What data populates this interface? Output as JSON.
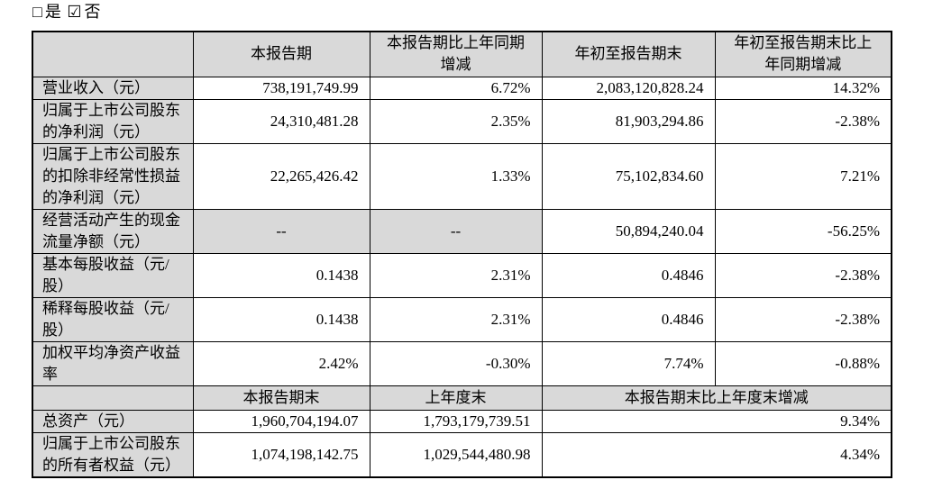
{
  "checkline": {
    "unchecked_icon": "□",
    "checked_icon": "☑",
    "yes_label": "是",
    "no_label": "否"
  },
  "colors": {
    "page_bg": "#ffffff",
    "shaded_cell_bg": "#d9d9d9",
    "border": "#000000",
    "text": "#000000"
  },
  "table": {
    "section1": {
      "headers": [
        "",
        "本报告期",
        "本报告期比上年同期增减",
        "年初至报告期末",
        "年初至报告期末比上年同期增减"
      ],
      "rows": [
        {
          "label": "营业收入（元）",
          "values": [
            "738,191,749.99",
            "6.72%",
            "2,083,120,828.24",
            "14.32%"
          ]
        },
        {
          "label": "归属于上市公司股东的净利润（元）",
          "values": [
            "24,310,481.28",
            "2.35%",
            "81,903,294.86",
            "-2.38%"
          ]
        },
        {
          "label": "归属于上市公司股东的扣除非经常性损益的净利润（元）",
          "values": [
            "22,265,426.42",
            "1.33%",
            "75,102,834.60",
            "7.21%"
          ]
        },
        {
          "label": "经营活动产生的现金流量净额（元）",
          "values": [
            "--",
            "--",
            "50,894,240.04",
            "-56.25%"
          ]
        },
        {
          "label": "基本每股收益（元/股）",
          "values": [
            "0.1438",
            "2.31%",
            "0.4846",
            "-2.38%"
          ]
        },
        {
          "label": "稀释每股收益（元/股）",
          "values": [
            "0.1438",
            "2.31%",
            "0.4846",
            "-2.38%"
          ]
        },
        {
          "label": "加权平均净资产收益率",
          "values": [
            "2.42%",
            "-0.30%",
            "7.74%",
            "-0.88%"
          ]
        }
      ]
    },
    "section2": {
      "headers": [
        "",
        "本报告期末",
        "上年度末",
        "本报告期末比上年度末增减"
      ],
      "rows": [
        {
          "label": "总资产（元）",
          "values": [
            "1,960,704,194.07",
            "1,793,179,739.51",
            "9.34%"
          ]
        },
        {
          "label": "归属于上市公司股东的所有者权益（元）",
          "values": [
            "1,074,198,142.75",
            "1,029,544,480.98",
            "4.34%"
          ]
        }
      ]
    }
  }
}
